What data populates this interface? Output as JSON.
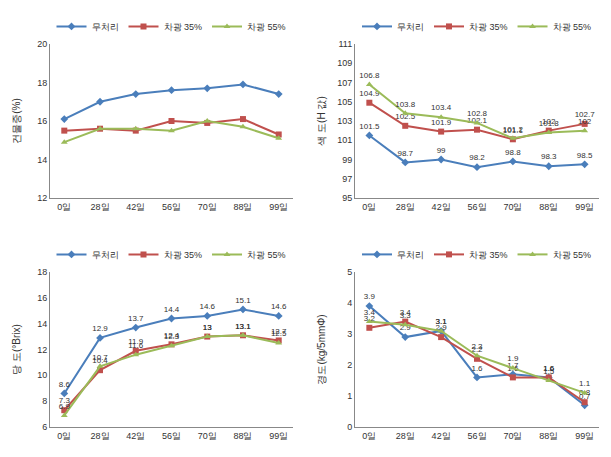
{
  "chart_data": [
    {
      "type": "line",
      "y_label": "건물중(%)",
      "categories": [
        "0일",
        "28일",
        "42일",
        "56일",
        "70일",
        "88일",
        "99일"
      ],
      "ylim": [
        12,
        20
      ],
      "yticks": [
        12,
        14,
        16,
        18,
        20
      ],
      "grid": false,
      "legend": "top",
      "data_labels": false,
      "series": [
        {
          "name": "무처리",
          "color": "#4a7ebb",
          "marker": "diamond",
          "values": [
            16.1,
            17.0,
            17.4,
            17.6,
            17.7,
            17.9,
            17.4
          ]
        },
        {
          "name": "차광 35%",
          "color": "#c0504d",
          "marker": "square",
          "values": [
            15.5,
            15.6,
            15.5,
            16.0,
            15.9,
            16.1,
            15.3
          ]
        },
        {
          "name": "차광 55%",
          "color": "#9bbb59",
          "marker": "triangle-up",
          "values": [
            14.9,
            15.6,
            15.6,
            15.5,
            16.0,
            15.7,
            15.1
          ]
        }
      ]
    },
    {
      "type": "line",
      "y_label": "색 도(H 값)",
      "categories": [
        "0일",
        "28일",
        "42일",
        "56일",
        "70일",
        "88일",
        "99일"
      ],
      "ylim": [
        95,
        111
      ],
      "yticks": [
        95,
        97,
        99,
        101,
        103,
        105,
        107,
        109,
        111
      ],
      "grid": false,
      "legend": "top",
      "data_labels": true,
      "series": [
        {
          "name": "무처리",
          "color": "#4a7ebb",
          "marker": "diamond",
          "values": [
            101.5,
            98.7,
            99.0,
            98.2,
            98.8,
            98.3,
            98.5
          ]
        },
        {
          "name": "차광 35%",
          "color": "#c0504d",
          "marker": "square",
          "values": [
            104.9,
            102.5,
            101.9,
            102.1,
            101.1,
            102.0,
            102.7
          ]
        },
        {
          "name": "차광 55%",
          "color": "#9bbb59",
          "marker": "triangle-up",
          "values": [
            106.8,
            103.8,
            103.4,
            102.8,
            101.2,
            101.8,
            102.0
          ]
        }
      ]
    },
    {
      "type": "line",
      "y_label": "당 도(°Brix)",
      "categories": [
        "0일",
        "28일",
        "42일",
        "56일",
        "70일",
        "88일",
        "99일"
      ],
      "ylim": [
        6,
        18
      ],
      "yticks": [
        6,
        8,
        10,
        12,
        14,
        16,
        18
      ],
      "grid": false,
      "legend": "top",
      "data_labels": true,
      "series": [
        {
          "name": "무처리",
          "color": "#4a7ebb",
          "marker": "diamond",
          "values": [
            8.6,
            12.9,
            13.7,
            14.4,
            14.6,
            15.1,
            14.6
          ]
        },
        {
          "name": "차광 35%",
          "color": "#c0504d",
          "marker": "square",
          "values": [
            7.3,
            10.4,
            11.9,
            12.4,
            13.0,
            13.1,
            12.7
          ]
        },
        {
          "name": "차광 55%",
          "color": "#9bbb59",
          "marker": "triangle-up",
          "values": [
            6.9,
            10.7,
            11.6,
            12.3,
            13.0,
            13.1,
            12.5
          ]
        }
      ]
    },
    {
      "type": "line",
      "y_label": "경도(kg/5mmΦ)",
      "categories": [
        "0일",
        "28일",
        "42일",
        "56일",
        "70일",
        "88일",
        "99일"
      ],
      "ylim": [
        0,
        5
      ],
      "yticks": [
        0,
        1,
        2,
        3,
        4,
        5
      ],
      "grid": false,
      "legend": "top",
      "data_labels": true,
      "series": [
        {
          "name": "무처리",
          "color": "#4a7ebb",
          "marker": "diamond",
          "values": [
            3.9,
            2.9,
            3.1,
            1.6,
            1.7,
            1.6,
            0.7
          ]
        },
        {
          "name": "차광 35%",
          "color": "#c0504d",
          "marker": "square",
          "values": [
            3.2,
            3.4,
            2.9,
            2.2,
            1.6,
            1.6,
            0.8
          ]
        },
        {
          "name": "차광 55%",
          "color": "#9bbb59",
          "marker": "triangle-up",
          "values": [
            3.4,
            3.3,
            3.1,
            2.3,
            1.9,
            1.5,
            1.1
          ]
        }
      ]
    }
  ]
}
